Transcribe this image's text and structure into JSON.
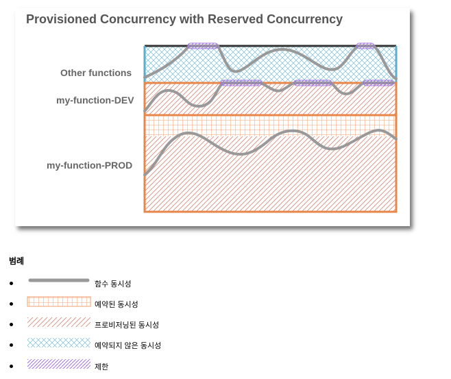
{
  "diagram": {
    "title": "Provisioned Concurrency with Reserved Concurrency",
    "rows": [
      {
        "id": "other",
        "label": "Other functions"
      },
      {
        "id": "dev",
        "label": "my-function-DEV"
      },
      {
        "id": "prod",
        "label": "my-function-PROD"
      }
    ],
    "colors": {
      "reserved_border": "#e8864a",
      "unreserved_border": "#5aaecb",
      "limit_fill": "#c79bf2",
      "concurrency_line": "#999999",
      "provisioned_hatch": "#d08a7a",
      "unreserved_hatch": "#8ec8dc",
      "reserved_grid": "#f0a070"
    }
  },
  "legend": {
    "heading": "범례",
    "items": [
      {
        "id": "function-concurrency",
        "label": "함수 동시성",
        "icon": "gray-line-swatch"
      },
      {
        "id": "reserved-concurrency",
        "label": "예약된 동시성",
        "icon": "orange-grid-swatch"
      },
      {
        "id": "provisioned-concurrency",
        "label": "프로비저닝된 동시성",
        "icon": "red-hatch-swatch"
      },
      {
        "id": "unreserved-concurrency",
        "label": "예약되지 않은 동시성",
        "icon": "blue-crosshatch-swatch"
      },
      {
        "id": "limit",
        "label": "제한",
        "icon": "purple-hatch-swatch"
      }
    ]
  }
}
